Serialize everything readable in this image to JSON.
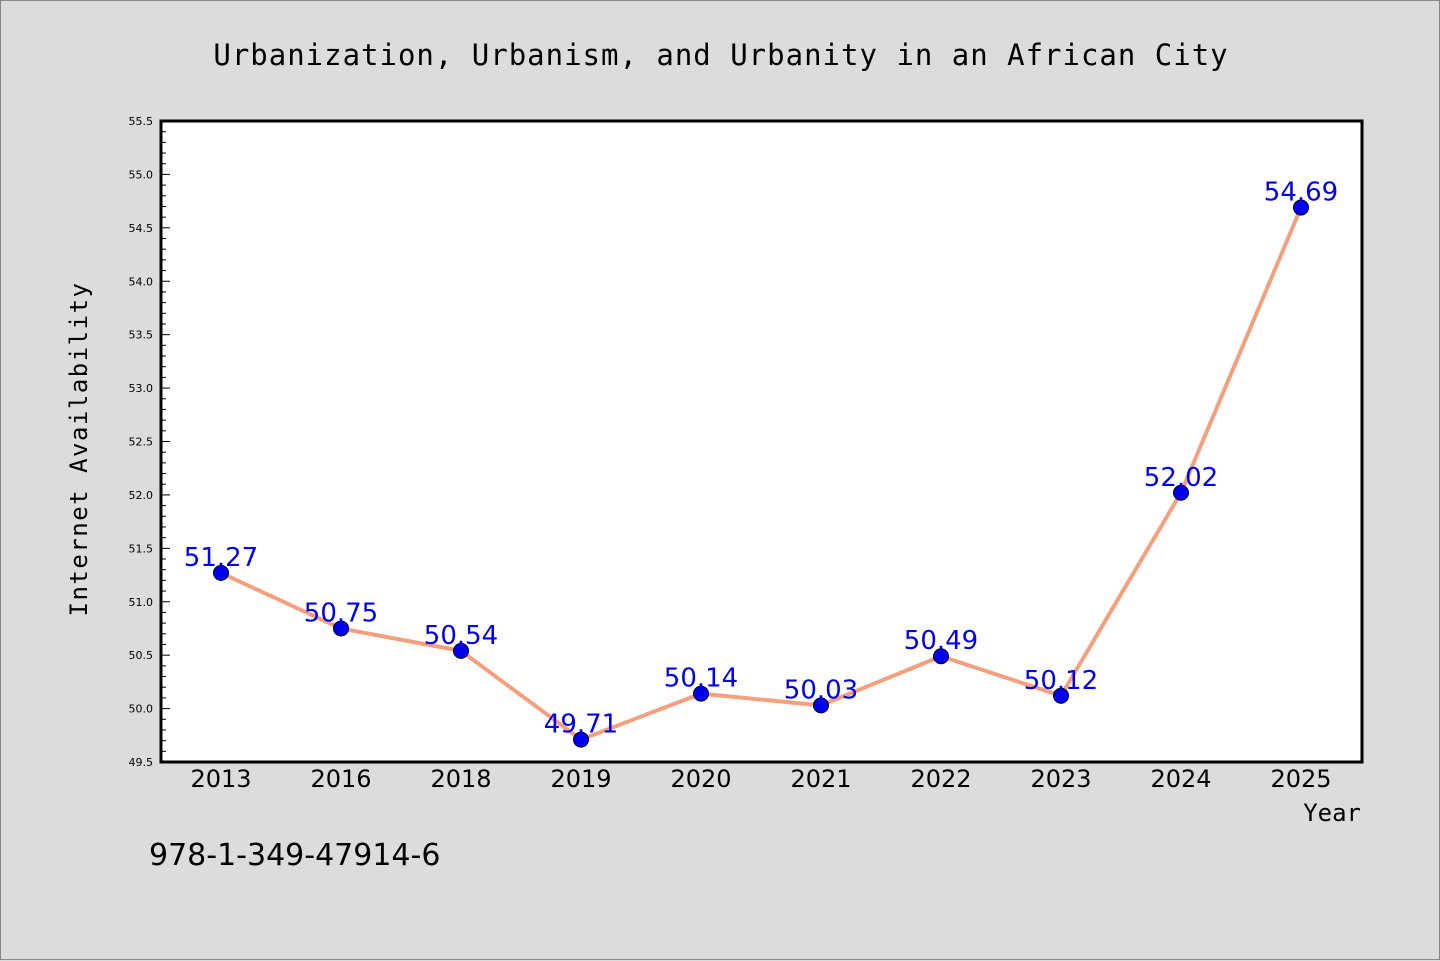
{
  "chart_data": {
    "type": "line",
    "title": "Urbanization, Urbanism, and Urbanity in an African City",
    "xlabel": "Year",
    "ylabel": "Internet Availability",
    "categories": [
      "2013",
      "2016",
      "2018",
      "2019",
      "2020",
      "2021",
      "2022",
      "2023",
      "2024",
      "2025"
    ],
    "series": [
      {
        "values": [
          51.27,
          50.75,
          50.54,
          49.71,
          50.14,
          50.03,
          50.49,
          50.12,
          52.02,
          54.69
        ]
      }
    ],
    "data_labels": [
      "51.27",
      "50.75",
      "50.54",
      "49.71",
      "50.14",
      "50.03",
      "50.49",
      "50.12",
      "52.02",
      "54.69"
    ],
    "ylim": [
      49.5,
      55.5
    ],
    "yticks": [
      "49.5",
      "50.0",
      "50.5",
      "51.0",
      "51.5",
      "52.0",
      "52.5",
      "53.0",
      "53.5",
      "54.0",
      "54.5",
      "55.0",
      "55.5"
    ],
    "grid": false,
    "line_color": "#f4a07f",
    "marker_color": "#0000ee",
    "label_color": "#0000ee"
  },
  "footer": {
    "isbn": "978-1-349-47914-6"
  }
}
